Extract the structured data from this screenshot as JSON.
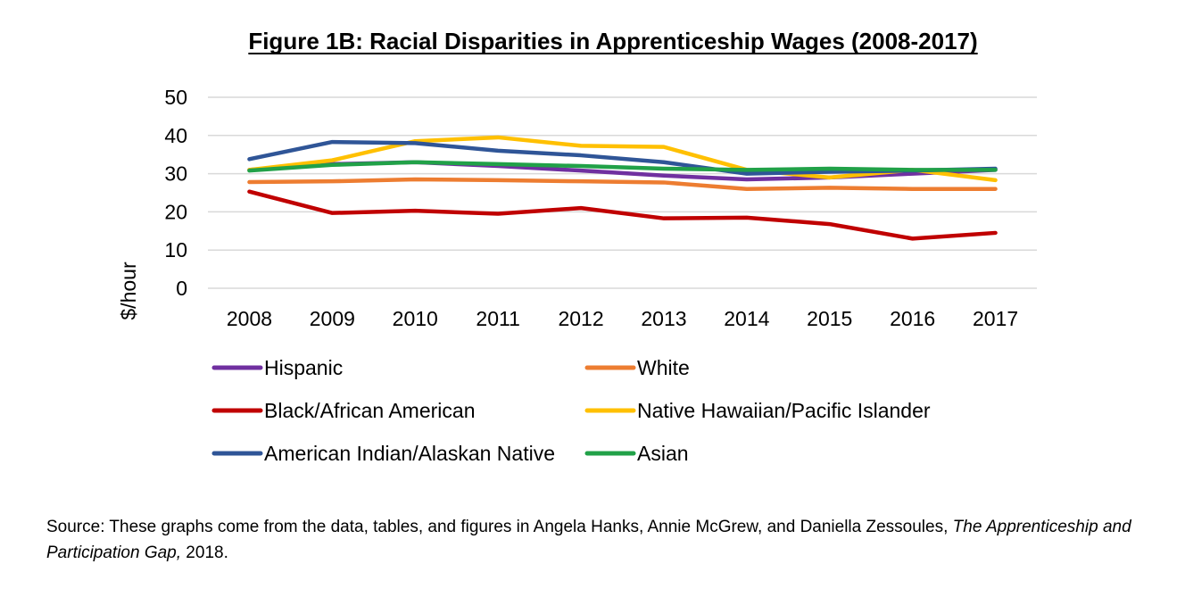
{
  "chart_data": {
    "type": "line",
    "title": "Figure 1B:  Racial Disparities in Apprenticeship Wages (2008-2017)",
    "ylabel": "$/hour",
    "xlabel": "",
    "categories": [
      "2008",
      "2009",
      "2010",
      "2011",
      "2012",
      "2013",
      "2014",
      "2015",
      "2016",
      "2017"
    ],
    "ylim": [
      0,
      50
    ],
    "yticks": [
      0,
      10,
      20,
      30,
      40,
      50
    ],
    "grid": true,
    "legend_position": "bottom",
    "series": [
      {
        "name": "Hispanic",
        "color": "#7030A0",
        "values": [
          31.0,
          32.5,
          33.0,
          32.0,
          30.8,
          29.5,
          28.5,
          29.0,
          30.0,
          31.0
        ]
      },
      {
        "name": "White",
        "color": "#ED7D31",
        "values": [
          27.8,
          28.0,
          28.5,
          28.3,
          28.0,
          27.7,
          26.0,
          26.3,
          26.0,
          26.0
        ]
      },
      {
        "name": "Black/African American",
        "color": "#C00000",
        "values": [
          25.3,
          19.7,
          20.3,
          19.5,
          21.0,
          18.3,
          18.5,
          16.8,
          13.0,
          14.5
        ]
      },
      {
        "name": "Native Hawaiian/Pacific Islander",
        "color": "#FFC000",
        "values": [
          31.0,
          33.5,
          38.5,
          39.5,
          37.3,
          37.0,
          31.0,
          29.0,
          31.0,
          28.3
        ]
      },
      {
        "name": "American Indian/Alaskan Native",
        "color": "#2F5597",
        "values": [
          33.8,
          38.3,
          38.0,
          36.0,
          34.8,
          33.0,
          30.0,
          30.5,
          30.8,
          31.3
        ]
      },
      {
        "name": "Asian",
        "color": "#21A148",
        "values": [
          30.8,
          32.3,
          33.0,
          32.5,
          32.0,
          31.3,
          31.0,
          31.3,
          31.0,
          31.0
        ]
      }
    ]
  },
  "source": {
    "prefix": "Source: These graphs come from the data, tables, and figures in Angela Hanks, Annie McGrew, and Daniella Zessoules, ",
    "italic": "The Apprenticeship and Participation Gap,",
    "suffix": " 2018."
  }
}
